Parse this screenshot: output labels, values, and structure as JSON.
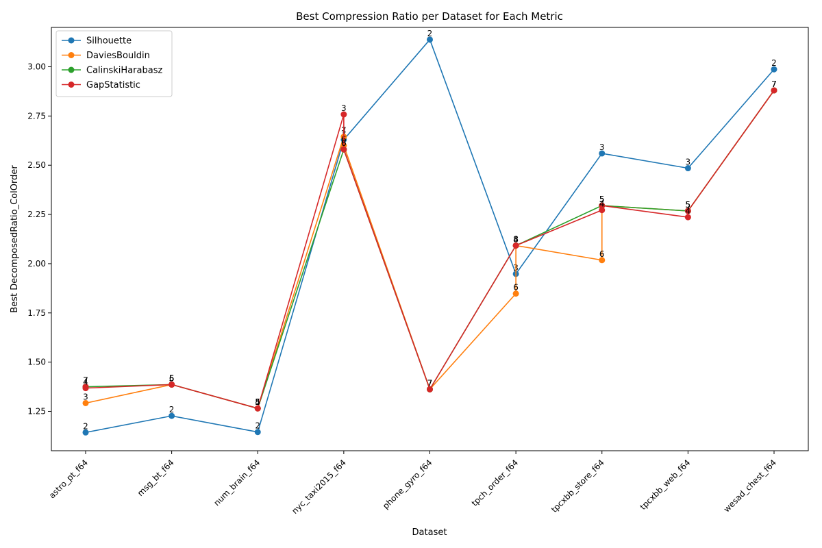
{
  "chart_data": {
    "type": "line",
    "title": "Best Compression Ratio per Dataset for Each Metric",
    "xlabel": "Dataset",
    "ylabel": "Best DecomposedRatio_ColOrder",
    "categories": [
      "astro_pt_f64",
      "msg_bt_f64",
      "num_brain_f64",
      "nyc_taxi2015_f64",
      "phone_gyro_f64",
      "tpch_order_f64",
      "tpcxbb_store_f64",
      "tpcxbb_web_f64",
      "wesad_chest_f64"
    ],
    "ylim": [
      1.05,
      3.2
    ],
    "yticks": [
      1.25,
      1.5,
      1.75,
      2.0,
      2.25,
      2.5,
      2.75,
      3.0
    ],
    "ytick_labels": [
      "1.25",
      "1.50",
      "1.75",
      "2.00",
      "2.25",
      "2.50",
      "2.75",
      "3.00"
    ],
    "grid": false,
    "legend_position": "top-left",
    "series": [
      {
        "name": "Silhouette",
        "color": "#1f77b4",
        "points": [
          {
            "x": "astro_pt_f64",
            "y": 1.143,
            "label": "2"
          },
          {
            "x": "msg_bt_f64",
            "y": 1.227,
            "label": "2"
          },
          {
            "x": "num_brain_f64",
            "y": 1.145,
            "label": "2"
          },
          {
            "x": "nyc_taxi2015_f64",
            "y": 2.63,
            "label": "2"
          },
          {
            "x": "phone_gyro_f64",
            "y": 3.138,
            "label": "2"
          },
          {
            "x": "tpch_order_f64",
            "y": 1.948,
            "label": "3"
          },
          {
            "x": "tpcxbb_store_f64",
            "y": 2.56,
            "label": "3"
          },
          {
            "x": "tpcxbb_web_f64",
            "y": 2.485,
            "label": "3"
          },
          {
            "x": "wesad_chest_f64",
            "y": 2.987,
            "label": "2"
          }
        ]
      },
      {
        "name": "DaviesBouldin",
        "color": "#ff7f0e",
        "points": [
          {
            "x": "astro_pt_f64",
            "y": 1.292,
            "label": "3"
          },
          {
            "x": "msg_bt_f64",
            "y": 1.386,
            "label": "5"
          },
          {
            "x": "num_brain_f64",
            "y": 1.265,
            "label": "5"
          },
          {
            "x": "nyc_taxi2015_f64",
            "y": 2.645,
            "label": "7"
          },
          {
            "x": "nyc_taxi2015_f64",
            "y": 2.6,
            "label": "6"
          },
          {
            "x": "phone_gyro_f64",
            "y": 1.362,
            "label": "7"
          },
          {
            "x": "tpch_order_f64",
            "y": 1.848,
            "label": "6"
          },
          {
            "x": "tpch_order_f64",
            "y": 2.092,
            "label": "8"
          },
          {
            "x": "tpcxbb_store_f64",
            "y": 2.018,
            "label": "6"
          },
          {
            "x": "tpcxbb_store_f64",
            "y": 2.295,
            "label": "5"
          },
          {
            "x": "tpcxbb_web_f64",
            "y": 2.268,
            "label": "5"
          },
          {
            "x": "wesad_chest_f64",
            "y": 2.88,
            "label": "7"
          }
        ]
      },
      {
        "name": "CalinskiHarabasz",
        "color": "#2ca02c",
        "points": [
          {
            "x": "astro_pt_f64",
            "y": 1.375,
            "label": "7"
          },
          {
            "x": "msg_bt_f64",
            "y": 1.386,
            "label": "5"
          },
          {
            "x": "num_brain_f64",
            "y": 1.265,
            "label": "5"
          },
          {
            "x": "nyc_taxi2015_f64",
            "y": 2.58,
            "label": "6"
          },
          {
            "x": "phone_gyro_f64",
            "y": 1.362,
            "label": "7"
          },
          {
            "x": "tpch_order_f64",
            "y": 2.092,
            "label": "8"
          },
          {
            "x": "tpcxbb_store_f64",
            "y": 2.295,
            "label": "5"
          },
          {
            "x": "tpcxbb_web_f64",
            "y": 2.268,
            "label": "5"
          },
          {
            "x": "wesad_chest_f64",
            "y": 2.88,
            "label": "7"
          }
        ]
      },
      {
        "name": "GapStatistic",
        "color": "#d62728",
        "points": [
          {
            "x": "astro_pt_f64",
            "y": 1.375,
            "label": "7"
          },
          {
            "x": "astro_pt_f64",
            "y": 1.368,
            "label": "4"
          },
          {
            "x": "msg_bt_f64",
            "y": 1.386,
            "label": "5"
          },
          {
            "x": "msg_bt_f64",
            "y": 1.386,
            "label": "6"
          },
          {
            "x": "num_brain_f64",
            "y": 1.265,
            "label": "5"
          },
          {
            "x": "num_brain_f64",
            "y": 1.265,
            "label": "4"
          },
          {
            "x": "nyc_taxi2015_f64",
            "y": 2.758,
            "label": "3"
          },
          {
            "x": "nyc_taxi2015_f64",
            "y": 2.58,
            "label": "6"
          },
          {
            "x": "phone_gyro_f64",
            "y": 1.362,
            "label": "7"
          },
          {
            "x": "tpch_order_f64",
            "y": 2.092,
            "label": "4"
          },
          {
            "x": "tpch_order_f64",
            "y": 2.092,
            "label": "8"
          },
          {
            "x": "tpcxbb_store_f64",
            "y": 2.272,
            "label": "4"
          },
          {
            "x": "tpcxbb_store_f64",
            "y": 2.295,
            "label": "5"
          },
          {
            "x": "tpcxbb_web_f64",
            "y": 2.236,
            "label": "4"
          },
          {
            "x": "tpcxbb_web_f64",
            "y": 2.268,
            "label": "5"
          },
          {
            "x": "wesad_chest_f64",
            "y": 2.88,
            "label": "7"
          }
        ]
      }
    ]
  }
}
